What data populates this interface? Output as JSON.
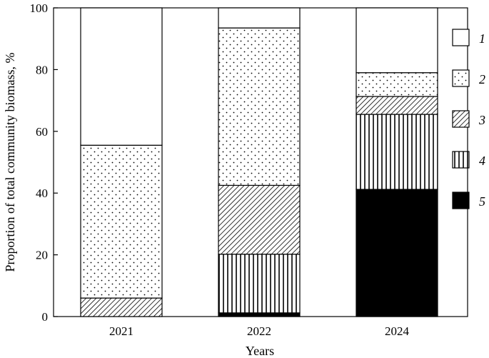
{
  "chart_data": {
    "type": "bar",
    "stacked": true,
    "percent_stacked": true,
    "title": "",
    "xlabel": "Years",
    "ylabel": "Proportion of total community biomass, %",
    "ylim": [
      0,
      100
    ],
    "yticks": [
      0,
      20,
      40,
      60,
      80,
      100
    ],
    "grid": false,
    "legend_position": "right",
    "categories": [
      "2021",
      "2022",
      "2024"
    ],
    "series": [
      {
        "name": "1",
        "pattern": "empty",
        "values": [
          44.5,
          6.5,
          21.0
        ]
      },
      {
        "name": "2",
        "pattern": "dots",
        "values": [
          49.5,
          51.0,
          7.7
        ]
      },
      {
        "name": "3",
        "pattern": "diagonal-hatch",
        "values": [
          6.0,
          22.3,
          5.8
        ]
      },
      {
        "name": "4",
        "pattern": "vertical-lines",
        "values": [
          0.0,
          19.0,
          24.3
        ]
      },
      {
        "name": "5",
        "pattern": "solid-black",
        "values": [
          0.0,
          1.2,
          41.2
        ]
      }
    ]
  }
}
